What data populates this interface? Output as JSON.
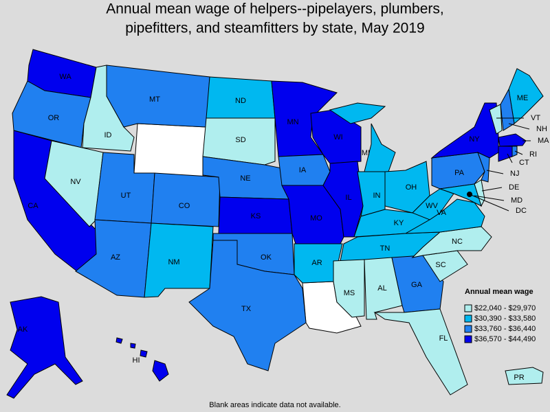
{
  "title_lines": [
    "Annual mean wage of helpers--pipelayers, plumbers,",
    "pipefitters, and steamfitters by state, May 2019"
  ],
  "legend": {
    "title": "Annual mean wage",
    "items": [
      {
        "label": "$22,040 - $29,970",
        "color": "#b0eeee"
      },
      {
        "label": "$30,390 - $33,580",
        "color": "#00b8f0"
      },
      {
        "label": "$33,760 - $36,440",
        "color": "#2080f0"
      },
      {
        "label": "$36,570 - $44,490",
        "color": "#0000ee"
      }
    ]
  },
  "states": [
    {
      "label": "WA",
      "color": "#0000ee"
    },
    {
      "label": "OR",
      "color": "#2080f0"
    },
    {
      "label": "CA",
      "color": "#0000ee"
    },
    {
      "label": "NV",
      "color": "#b0eeee"
    },
    {
      "label": "ID",
      "color": "#b0eeee"
    },
    {
      "label": "MT",
      "color": "#2080f0"
    },
    {
      "label": "UT",
      "color": "#2080f0"
    },
    {
      "label": "CO",
      "color": "#2080f0"
    },
    {
      "label": "AZ",
      "color": "#2080f0"
    },
    {
      "label": "NM",
      "color": "#00b8f0"
    },
    {
      "label": "ND",
      "color": "#00b8f0"
    },
    {
      "label": "SD",
      "color": "#b0eeee"
    },
    {
      "label": "NE",
      "color": "#2080f0"
    },
    {
      "label": "KS",
      "color": "#0000ee"
    },
    {
      "label": "OK",
      "color": "#2080f0"
    },
    {
      "label": "TX",
      "color": "#2080f0"
    },
    {
      "label": "MN",
      "color": "#0000ee"
    },
    {
      "label": "IA",
      "color": "#2080f0"
    },
    {
      "label": "MO",
      "color": "#0000ee"
    },
    {
      "label": "AR",
      "color": "#00b8f0"
    },
    {
      "label": "WI",
      "color": "#0000ee"
    },
    {
      "label": "IL",
      "color": "#0000ee"
    },
    {
      "label": "MI",
      "color": "#00b8f0"
    },
    {
      "label": "IN",
      "color": "#00b8f0"
    },
    {
      "label": "OH",
      "color": "#00b8f0"
    },
    {
      "label": "KY",
      "color": "#00b8f0"
    },
    {
      "label": "TN",
      "color": "#00b8f0"
    },
    {
      "label": "MS",
      "color": "#b0eeee"
    },
    {
      "label": "AL",
      "color": "#b0eeee"
    },
    {
      "label": "GA",
      "color": "#2080f0"
    },
    {
      "label": "FL",
      "color": "#b0eeee"
    },
    {
      "label": "SC",
      "color": "#b0eeee"
    },
    {
      "label": "NC",
      "color": "#b0eeee"
    },
    {
      "label": "VA",
      "color": "#00b8f0"
    },
    {
      "label": "WV",
      "color": "#00b8f0"
    },
    {
      "label": "PA",
      "color": "#2080f0"
    },
    {
      "label": "NY",
      "color": "#0000ee"
    },
    {
      "label": "ME",
      "color": "#00b8f0"
    },
    {
      "label": "VT",
      "color": "#b0eeee"
    },
    {
      "label": "NH",
      "color": "#2080f0"
    },
    {
      "label": "MA",
      "color": "#0000ee"
    },
    {
      "label": "CT",
      "color": "#0000ee"
    },
    {
      "label": "RI",
      "color": "#2080f0"
    },
    {
      "label": "NJ",
      "color": "#2080f0"
    },
    {
      "label": "DE",
      "color": "#b0eeee"
    },
    {
      "label": "MD",
      "color": "#00b8f0"
    },
    {
      "label": "DC",
      "color": "#000000"
    },
    {
      "label": "AK",
      "color": "#0000ee"
    },
    {
      "label": "HI",
      "color": "#0000ee"
    },
    {
      "label": "PR",
      "color": "#b0eeee"
    }
  ],
  "footnote": "Blank areas indicate data not available."
}
